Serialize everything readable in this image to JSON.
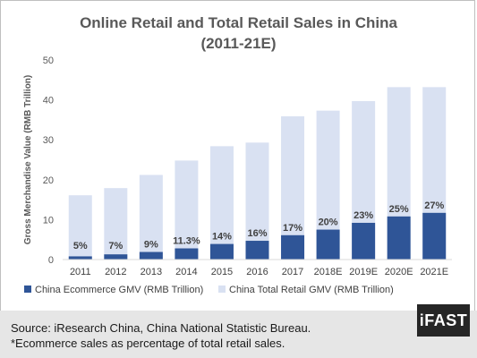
{
  "chart_data": {
    "type": "bar",
    "title": "Online Retail and Total Retail Sales in China",
    "subtitle": "(2011-21E)",
    "ylabel": "Gross Merchandise Value (RMB Trillion)",
    "xlabel": "",
    "ylim": [
      0,
      50
    ],
    "yticks": [
      "0",
      "10",
      "20",
      "30",
      "40",
      "50"
    ],
    "grid": false,
    "legend_position": "bottom",
    "categories": [
      "2011",
      "2012",
      "2013",
      "2014",
      "2015",
      "2016",
      "2017",
      "2018E",
      "2019E",
      "2020E",
      "2021E"
    ],
    "series": [
      {
        "name": "China Ecommerce GMV (RMB Trillion)",
        "color": "#2f5597",
        "values": [
          0.8,
          1.3,
          1.9,
          2.8,
          3.9,
          4.7,
          6.1,
          7.5,
          9.2,
          10.8,
          11.7
        ]
      },
      {
        "name": "China Total Retail GMV (RMB Trillion)",
        "color": "#d9e1f2",
        "values": [
          16.1,
          17.9,
          21.2,
          24.8,
          28.4,
          29.3,
          35.9,
          37.3,
          39.7,
          43.2,
          43.2
        ]
      }
    ],
    "data_labels": [
      "5%",
      "7%",
      "9%",
      "11.3%",
      "14%",
      "16%",
      "17%",
      "20%",
      "23%",
      "25%",
      "27%"
    ]
  },
  "footer": {
    "source": "Source: iResearch China, China National Statistic Bureau.",
    "note": "*Ecommerce sales as percentage of total retail sales."
  },
  "logo_text": "iFAST"
}
